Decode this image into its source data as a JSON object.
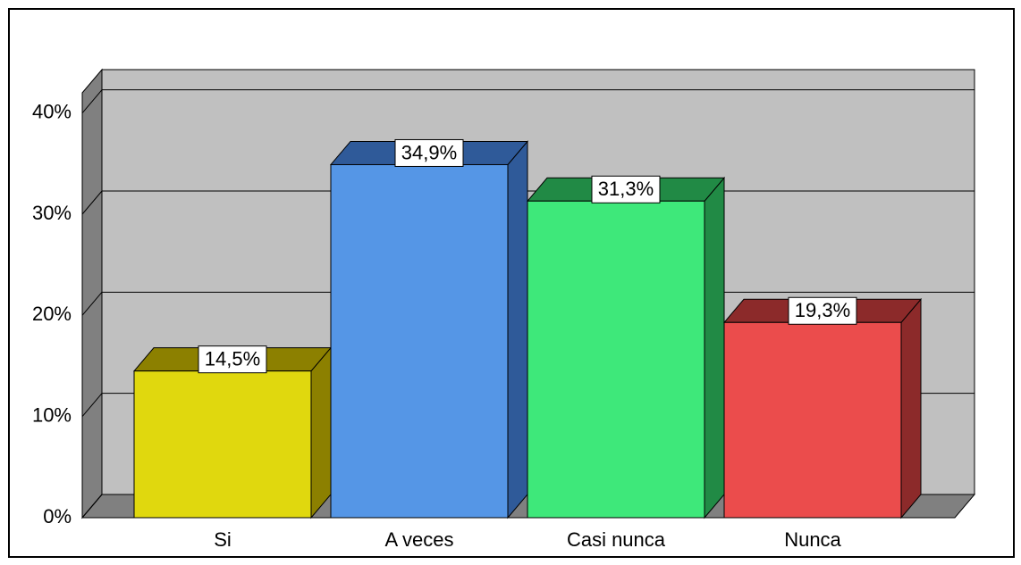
{
  "chart_data": {
    "type": "bar",
    "categories": [
      "Si",
      "A veces",
      "Casi nunca",
      "Nunca"
    ],
    "values": [
      14.5,
      34.9,
      31.3,
      19.3
    ],
    "value_labels": [
      "14,5%",
      "34,9%",
      "31,3%",
      "19,3%"
    ],
    "colors": [
      "#e0d80e",
      "#5596e6",
      "#3ee87a",
      "#eb4c4c"
    ],
    "side_colors": [
      "#8c8000",
      "#2f5a99",
      "#218a45",
      "#8c2a2a"
    ],
    "ylim": [
      0,
      42
    ],
    "yticks": [
      {
        "value": 0,
        "label": "0%"
      },
      {
        "value": 10,
        "label": "10%"
      },
      {
        "value": 20,
        "label": "20%"
      },
      {
        "value": 30,
        "label": "30%"
      },
      {
        "value": 40,
        "label": "40%"
      }
    ],
    "grid": true
  }
}
